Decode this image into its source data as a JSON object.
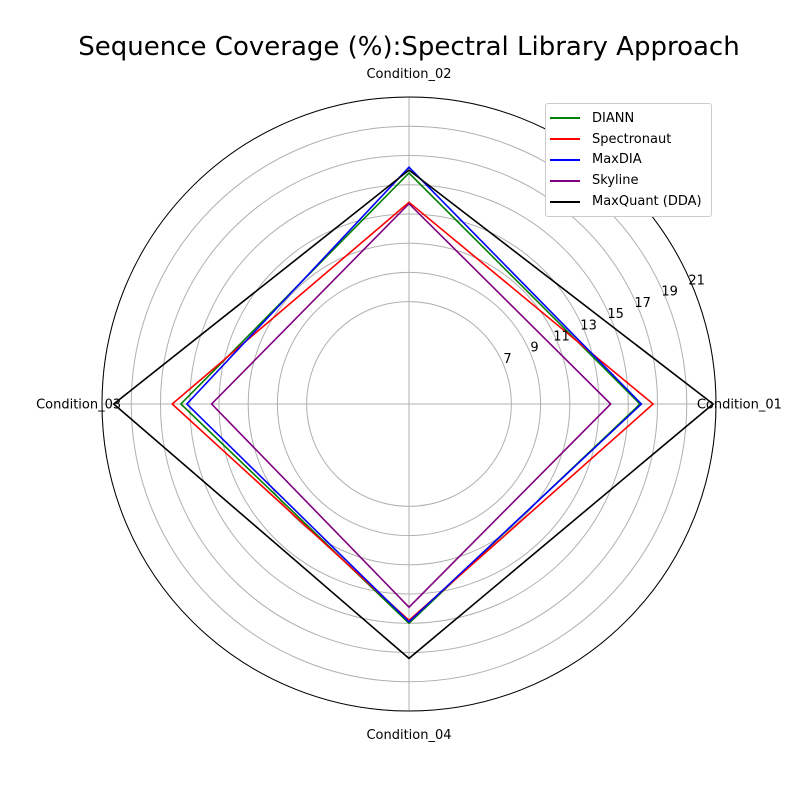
{
  "chart_data": {
    "type": "radar",
    "title": "Sequence Coverage (%):Spectral Library Approach",
    "categories": [
      "Condition_01",
      "Condition_02",
      "Condition_03",
      "Condition_04"
    ],
    "radial_ticks": [
      7,
      9,
      11,
      13,
      15,
      17,
      19,
      21
    ],
    "rlim": [
      0,
      21
    ],
    "grid": true,
    "legend_position": "top-right",
    "series": [
      {
        "name": "DIANN",
        "color": "#008000",
        "values": [
          15.8,
          15.8,
          15.6,
          15.0
        ]
      },
      {
        "name": "Spectronaut",
        "color": "#ff0000",
        "values": [
          16.7,
          13.8,
          16.2,
          14.8
        ]
      },
      {
        "name": "MaxDIA",
        "color": "#0000ff",
        "values": [
          15.9,
          16.2,
          15.2,
          14.9
        ]
      },
      {
        "name": "Skyline",
        "color": "#800080",
        "values": [
          13.8,
          13.7,
          13.5,
          13.9
        ]
      },
      {
        "name": "MaxQuant (DDA)",
        "color": "#000000",
        "values": [
          20.8,
          16.0,
          20.2,
          17.4
        ]
      }
    ]
  }
}
